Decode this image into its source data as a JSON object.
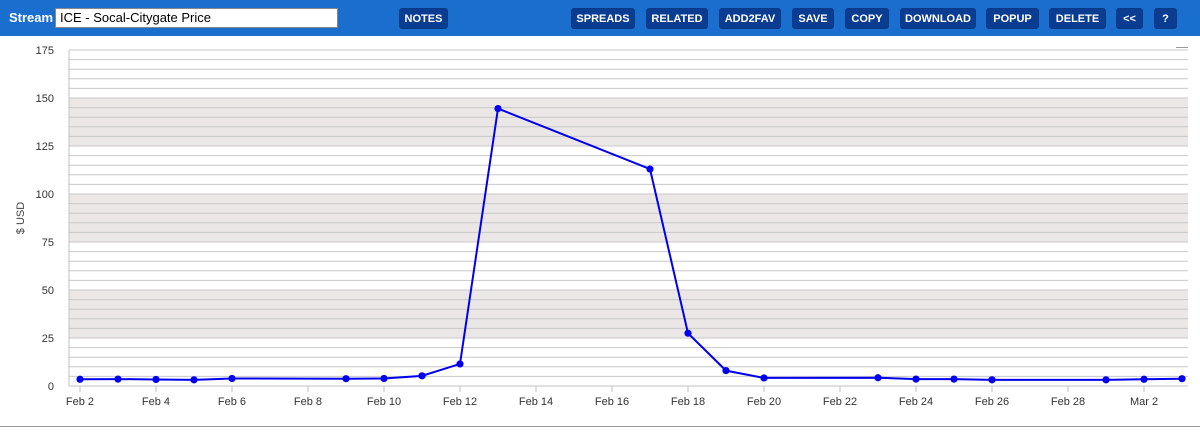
{
  "toolbar": {
    "stream_label": "Stream",
    "stream_value": "ICE - Socal-Citygate Price",
    "buttons": {
      "notes": "NOTES",
      "spreads": "SPREADS",
      "related": "RELATED",
      "add2fav": "ADD2FAV",
      "save": "SAVE",
      "copy": "COPY",
      "download": "DOWNLOAD",
      "popup": "POPUP",
      "delete": "DELETE",
      "collapse": "<<",
      "help": "?"
    }
  },
  "colors": {
    "toolbar_bg": "#1a6fce",
    "button_bg": "#0a3d91",
    "series": "#0000ee",
    "band": "#ebe7e7"
  },
  "chart_data": {
    "type": "line",
    "ylabel": "$ USD",
    "ylim": [
      0,
      175
    ],
    "yticks": [
      0,
      25,
      50,
      75,
      100,
      125,
      150,
      175
    ],
    "x_tick_labels": [
      "Feb 2",
      "Feb 4",
      "Feb 6",
      "Feb 8",
      "Feb 10",
      "Feb 12",
      "Feb 14",
      "Feb 16",
      "Feb 18",
      "Feb 20",
      "Feb 22",
      "Feb 24",
      "Feb 26",
      "Feb 28",
      "Mar 2"
    ],
    "grid": true,
    "series": [
      {
        "points": [
          {
            "x": "Feb 2",
            "y": 3.5
          },
          {
            "x": "Feb 3",
            "y": 3.6
          },
          {
            "x": "Feb 4",
            "y": 3.4
          },
          {
            "x": "Feb 5",
            "y": 3.2
          },
          {
            "x": "Feb 6",
            "y": 3.9
          },
          {
            "x": "Feb 9",
            "y": 3.8
          },
          {
            "x": "Feb 10",
            "y": 3.9
          },
          {
            "x": "Feb 11",
            "y": 5.3
          },
          {
            "x": "Feb 12",
            "y": 11.5
          },
          {
            "x": "Feb 13",
            "y": 144.5
          },
          {
            "x": "Feb 17",
            "y": 113
          },
          {
            "x": "Feb 18",
            "y": 27.5
          },
          {
            "x": "Feb 19",
            "y": 8
          },
          {
            "x": "Feb 20",
            "y": 4.2
          },
          {
            "x": "Feb 23",
            "y": 4.3
          },
          {
            "x": "Feb 24",
            "y": 3.6
          },
          {
            "x": "Feb 25",
            "y": 3.6
          },
          {
            "x": "Feb 26",
            "y": 3.2
          },
          {
            "x": "Mar 1",
            "y": 3.2
          },
          {
            "x": "Mar 2",
            "y": 3.5
          },
          {
            "x": "Mar 3",
            "y": 3.8
          }
        ]
      }
    ]
  }
}
